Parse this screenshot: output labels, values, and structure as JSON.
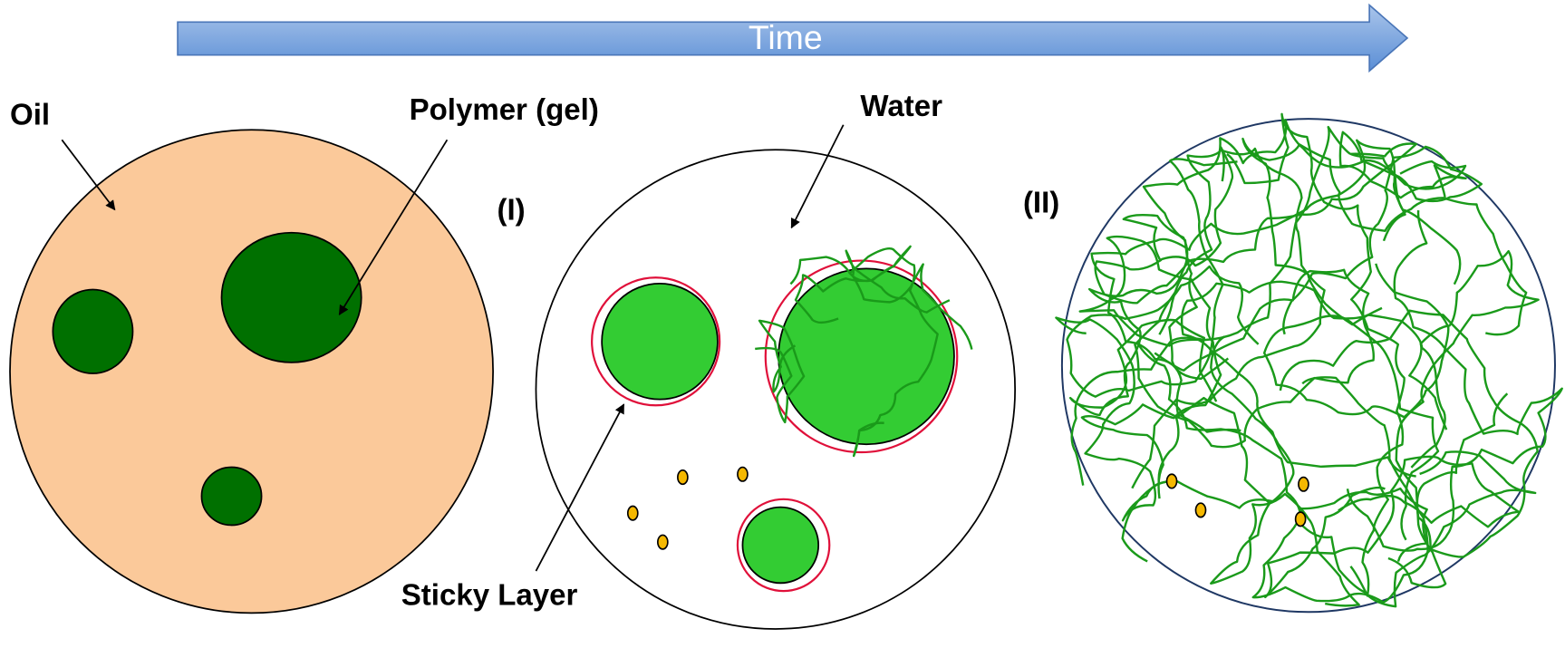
{
  "timeline": {
    "label": "Time"
  },
  "stage0": {
    "oil_label": "Oil",
    "polymer_label": "Polymer (gel)"
  },
  "stage1": {
    "label": "(I)",
    "water_label": "Water",
    "sticky_label": "Sticky Layer"
  },
  "stage2": {
    "label": "(II)"
  }
}
